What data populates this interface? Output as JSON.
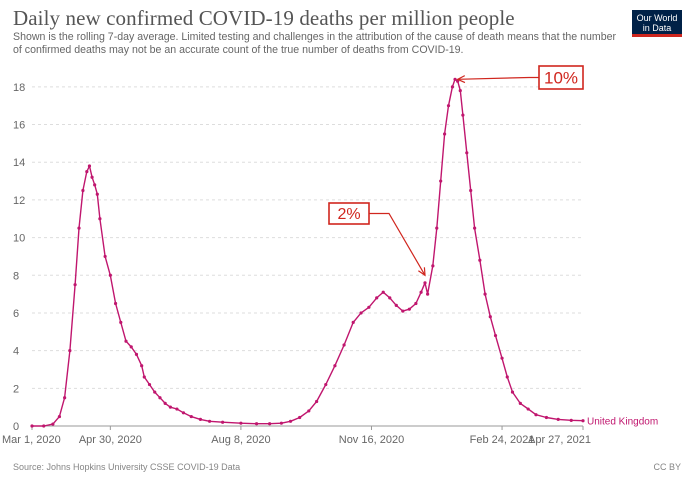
{
  "header": {
    "title": "Daily new confirmed COVID-19 deaths per million people",
    "subtitle": "Shown is the rolling 7-day average. Limited testing and challenges in the attribution of the cause of death means that the number of confirmed deaths may not be an accurate count of the true number of deaths from COVID-19."
  },
  "logo": {
    "line1": "Our World",
    "line2": "in Data"
  },
  "footer": {
    "source": "Source: Johns Hopkins University CSSE COVID-19 Data",
    "license": "CC BY"
  },
  "colors": {
    "series": "#c0166e",
    "annotation": "#d0261e",
    "grid": "#dddddd"
  },
  "chart_data": {
    "type": "line",
    "title": "Daily new confirmed COVID-19 deaths per million people",
    "xlabel": "",
    "ylabel": "",
    "ylim": [
      0,
      19
    ],
    "yticks": [
      0,
      2,
      4,
      6,
      8,
      10,
      12,
      14,
      16,
      18
    ],
    "xlim": [
      "2020-03-01",
      "2021-04-27"
    ],
    "xticks": [
      "Mar 1, 2020",
      "Apr 30, 2020",
      "Aug 8, 2020",
      "Nov 16, 2020",
      "Feb 24, 2021",
      "Apr 27, 2021"
    ],
    "xtick_dates": [
      "2020-03-01",
      "2020-04-30",
      "2020-08-08",
      "2020-11-16",
      "2021-02-24",
      "2021-04-27"
    ],
    "grid": true,
    "series": [
      {
        "name": "United Kingdom",
        "x": [
          "2020-03-01",
          "2020-03-10",
          "2020-03-17",
          "2020-03-22",
          "2020-03-26",
          "2020-03-30",
          "2020-04-03",
          "2020-04-06",
          "2020-04-09",
          "2020-04-12",
          "2020-04-14",
          "2020-04-16",
          "2020-04-18",
          "2020-04-20",
          "2020-04-22",
          "2020-04-26",
          "2020-04-30",
          "2020-05-04",
          "2020-05-08",
          "2020-05-12",
          "2020-05-16",
          "2020-05-20",
          "2020-05-24",
          "2020-05-26",
          "2020-05-30",
          "2020-06-03",
          "2020-06-07",
          "2020-06-11",
          "2020-06-15",
          "2020-06-20",
          "2020-06-25",
          "2020-07-01",
          "2020-07-08",
          "2020-07-15",
          "2020-07-25",
          "2020-08-08",
          "2020-08-20",
          "2020-08-30",
          "2020-09-08",
          "2020-09-15",
          "2020-09-22",
          "2020-09-29",
          "2020-10-05",
          "2020-10-12",
          "2020-10-19",
          "2020-10-26",
          "2020-11-02",
          "2020-11-08",
          "2020-11-14",
          "2020-11-20",
          "2020-11-25",
          "2020-11-30",
          "2020-12-05",
          "2020-12-10",
          "2020-12-15",
          "2020-12-20",
          "2020-12-24",
          "2020-12-27",
          "2020-12-29",
          "2021-01-02",
          "2021-01-05",
          "2021-01-08",
          "2021-01-11",
          "2021-01-14",
          "2021-01-17",
          "2021-01-19",
          "2021-01-21",
          "2021-01-23",
          "2021-01-25",
          "2021-01-28",
          "2021-01-31",
          "2021-02-03",
          "2021-02-07",
          "2021-02-11",
          "2021-02-15",
          "2021-02-19",
          "2021-02-24",
          "2021-02-28",
          "2021-03-04",
          "2021-03-10",
          "2021-03-16",
          "2021-03-22",
          "2021-03-30",
          "2021-04-08",
          "2021-04-18",
          "2021-04-27"
        ],
        "y": [
          0,
          0,
          0.1,
          0.5,
          1.5,
          4.0,
          7.5,
          10.5,
          12.5,
          13.5,
          13.8,
          13.2,
          12.8,
          12.3,
          11.0,
          9.0,
          8.0,
          6.5,
          5.5,
          4.5,
          4.2,
          3.8,
          3.2,
          2.6,
          2.2,
          1.8,
          1.5,
          1.2,
          1.0,
          0.9,
          0.7,
          0.5,
          0.35,
          0.25,
          0.2,
          0.15,
          0.12,
          0.12,
          0.15,
          0.25,
          0.45,
          0.8,
          1.3,
          2.2,
          3.2,
          4.3,
          5.5,
          6.0,
          6.3,
          6.8,
          7.1,
          6.8,
          6.4,
          6.1,
          6.2,
          6.5,
          7.1,
          7.6,
          7.0,
          8.5,
          10.5,
          13.0,
          15.5,
          17.0,
          18.0,
          18.4,
          18.3,
          17.8,
          16.5,
          14.5,
          12.5,
          10.5,
          8.8,
          7.0,
          5.8,
          4.8,
          3.6,
          2.6,
          1.8,
          1.2,
          0.9,
          0.6,
          0.45,
          0.35,
          0.3,
          0.28
        ]
      }
    ],
    "annotations": [
      {
        "text": "2%",
        "target_x": "2020-12-27",
        "target_y": 8.0
      },
      {
        "text": "10%",
        "target_x": "2021-01-21",
        "target_y": 18.4
      }
    ]
  }
}
